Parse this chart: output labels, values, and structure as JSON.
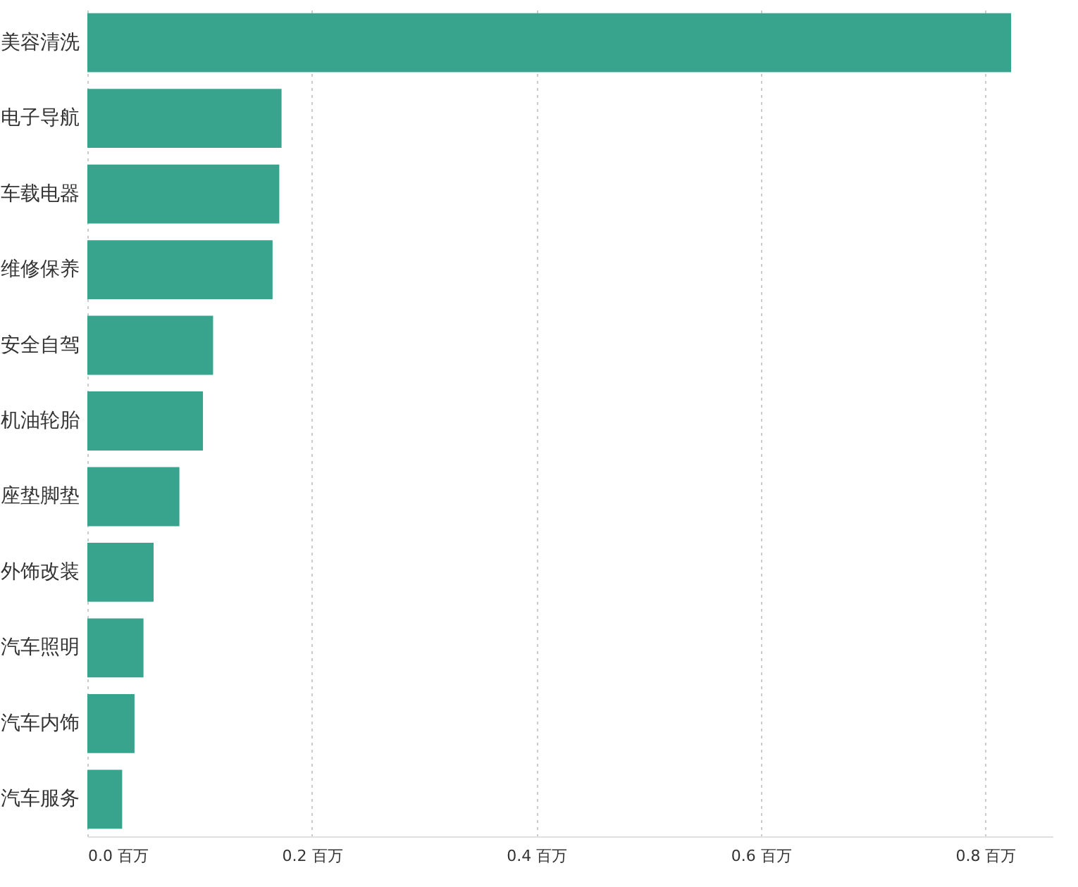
{
  "chart_data": {
    "type": "bar",
    "orientation": "horizontal",
    "categories": [
      "美容清洗",
      "电子导航",
      "车载电器",
      "维修保养",
      "安全自驾",
      "机油轮胎",
      "座垫脚垫",
      "外饰改装",
      "汽车照明",
      "汽车内饰",
      "汽车服务"
    ],
    "values": [
      0.823,
      0.173,
      0.171,
      0.165,
      0.112,
      0.103,
      0.082,
      0.059,
      0.05,
      0.042,
      0.031
    ],
    "color": "#38a48e",
    "xlim": [
      0,
      0.86
    ],
    "xticks": [
      {
        "value": 0,
        "label": "0.0 百万"
      },
      {
        "value": 0.2,
        "label": "0.2 百万"
      },
      {
        "value": 0.4,
        "label": "0.4 百万"
      },
      {
        "value": 0.6,
        "label": "0.6 百万"
      },
      {
        "value": 0.8,
        "label": "0.8 百万"
      }
    ],
    "grid": "x"
  }
}
